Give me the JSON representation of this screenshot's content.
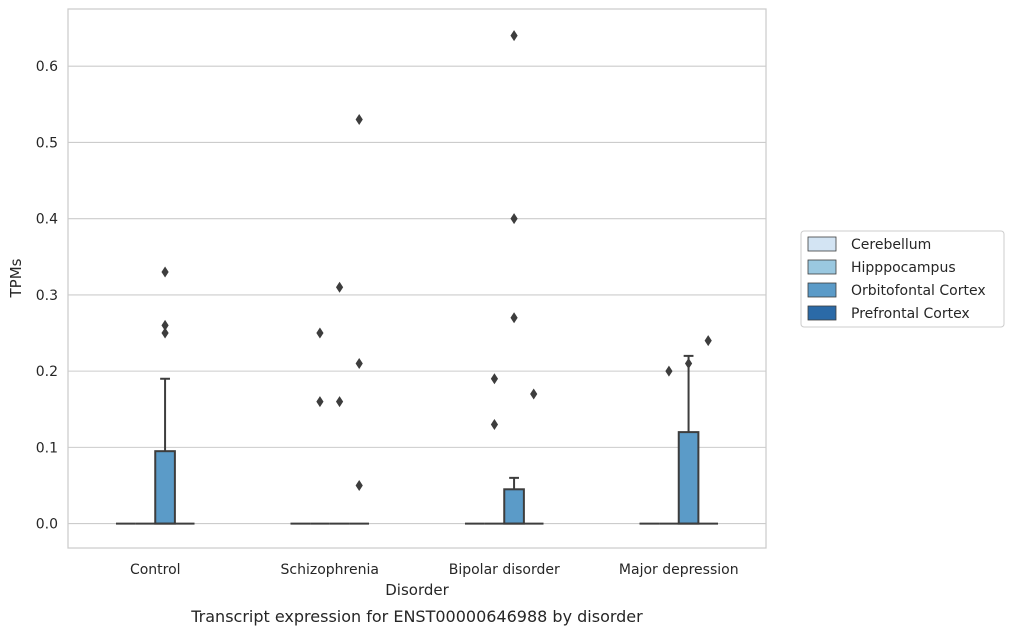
{
  "chart_data": {
    "type": "box",
    "title": "",
    "caption": "Transcript expression for ENST00000646988 by disorder",
    "xlabel": "Disorder",
    "ylabel": "TPMs",
    "ylim": [
      -0.032,
      0.675
    ],
    "yticks": [
      0.0,
      0.1,
      0.2,
      0.3,
      0.4,
      0.5,
      0.6
    ],
    "ytick_labels": [
      "0.0",
      "0.1",
      "0.2",
      "0.3",
      "0.4",
      "0.5",
      "0.6"
    ],
    "grid": "horizontal",
    "legend_position": "right, outside plot",
    "categories": [
      "Control",
      "Schizophrenia",
      "Bipolar disorder",
      "Major depression"
    ],
    "series": [
      {
        "name": "Cerebellum",
        "color": "#d3e4f3",
        "boxes": [
          {
            "q1": 0,
            "median": 0,
            "q3": 0,
            "whisker_low": 0,
            "whisker_high": 0,
            "outliers": []
          },
          {
            "q1": 0,
            "median": 0,
            "q3": 0,
            "whisker_low": 0,
            "whisker_high": 0,
            "outliers": []
          },
          {
            "q1": 0,
            "median": 0,
            "q3": 0,
            "whisker_low": 0,
            "whisker_high": 0,
            "outliers": []
          },
          {
            "q1": 0,
            "median": 0,
            "q3": 0,
            "whisker_low": 0,
            "whisker_high": 0,
            "outliers": []
          }
        ]
      },
      {
        "name": "Hipppocampus",
        "color": "#9ac8e0",
        "boxes": [
          {
            "q1": 0,
            "median": 0,
            "q3": 0,
            "whisker_low": 0,
            "whisker_high": 0,
            "outliers": []
          },
          {
            "q1": 0,
            "median": 0,
            "q3": 0,
            "whisker_low": 0,
            "whisker_high": 0,
            "outliers": [
              0.25,
              0.16
            ]
          },
          {
            "q1": 0,
            "median": 0,
            "q3": 0,
            "whisker_low": 0,
            "whisker_high": 0,
            "outliers": [
              0.19,
              0.13
            ]
          },
          {
            "q1": 0,
            "median": 0,
            "q3": 0,
            "whisker_low": 0,
            "whisker_high": 0,
            "outliers": [
              0.2
            ]
          }
        ]
      },
      {
        "name": "Orbitofontal Cortex",
        "color": "#5b9bc8",
        "boxes": [
          {
            "q1": 0,
            "median": 0,
            "q3": 0.095,
            "whisker_low": 0,
            "whisker_high": 0.19,
            "outliers": [
              0.33,
              0.26,
              0.25
            ]
          },
          {
            "q1": 0,
            "median": 0,
            "q3": 0,
            "whisker_low": 0,
            "whisker_high": 0,
            "outliers": [
              0.31,
              0.16
            ]
          },
          {
            "q1": 0,
            "median": 0,
            "q3": 0.045,
            "whisker_low": 0,
            "whisker_high": 0.06,
            "outliers": [
              0.64,
              0.4,
              0.27
            ]
          },
          {
            "q1": 0,
            "median": 0,
            "q3": 0.12,
            "whisker_low": 0,
            "whisker_high": 0.22,
            "outliers": [
              0.21
            ]
          }
        ]
      },
      {
        "name": "Prefrontal Cortex",
        "color": "#2b6aa7",
        "boxes": [
          {
            "q1": 0,
            "median": 0,
            "q3": 0,
            "whisker_low": 0,
            "whisker_high": 0,
            "outliers": []
          },
          {
            "q1": 0,
            "median": 0,
            "q3": 0,
            "whisker_low": 0,
            "whisker_high": 0,
            "outliers": [
              0.53,
              0.21,
              0.05
            ]
          },
          {
            "q1": 0,
            "median": 0,
            "q3": 0,
            "whisker_low": 0,
            "whisker_high": 0,
            "outliers": [
              0.17
            ]
          },
          {
            "q1": 0,
            "median": 0,
            "q3": 0,
            "whisker_low": 0,
            "whisker_high": 0,
            "outliers": [
              0.24
            ]
          }
        ]
      }
    ]
  }
}
